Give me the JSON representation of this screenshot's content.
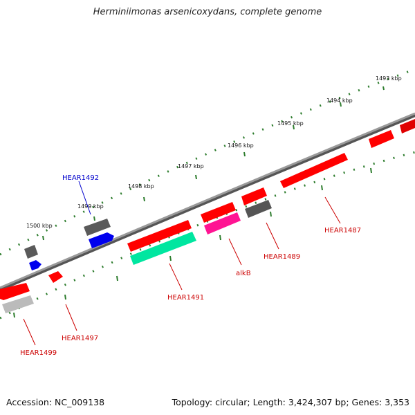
{
  "title": "Herminiimonas arsenicoxydans, complete genome",
  "footer": {
    "accession": "Accession: NC_009138",
    "topology": "Topology: circular; Length: 3,424,307 bp; Genes: 3,353"
  },
  "scale_labels": [
    "1493 kbp",
    "1494 kbp",
    "1495 kbp",
    "1496 kbp",
    "1497 kbp",
    "1498 kbp",
    "1499 kbp",
    "1500 kbp"
  ],
  "gene_labels": [
    "HEAR1492",
    "HEAR1487",
    "alkB",
    "HEAR1489",
    "HEAR1491",
    "HEAR1497",
    "HEAR1499"
  ],
  "colors": {
    "forward_gene": "#ff0000",
    "reverse_gene": "#ff0000",
    "hypothetical": "#666666",
    "blue_gene": "#0000ff",
    "alkB": "#ff1493",
    "teal_gene": "#00e6a0",
    "backbone": "#888888",
    "scale_ticks": "#2e7d2e",
    "label_red": "#cc0000",
    "label_blue": "#0000cc"
  }
}
